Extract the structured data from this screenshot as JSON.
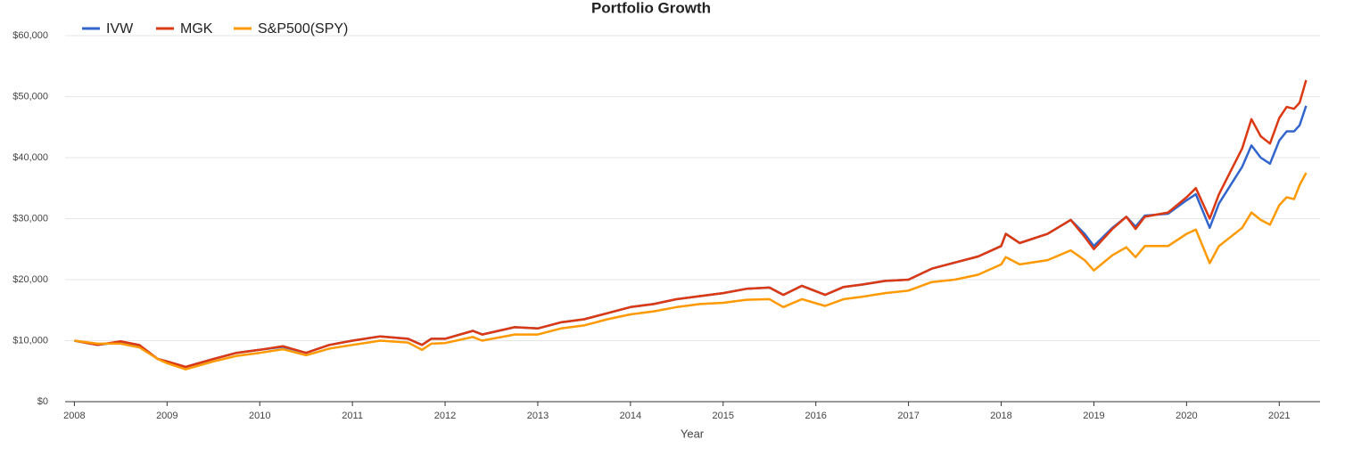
{
  "chart_data": {
    "type": "line",
    "title": "Portfolio Growth",
    "x_label": "Year",
    "x": [
      2008.0,
      2008.25,
      2008.5,
      2008.7,
      2008.9,
      2009.0,
      2009.2,
      2009.5,
      2009.75,
      2010.0,
      2010.25,
      2010.5,
      2010.75,
      2011.0,
      2011.3,
      2011.6,
      2011.75,
      2011.85,
      2012.0,
      2012.3,
      2012.4,
      2012.75,
      2013.0,
      2013.25,
      2013.5,
      2013.75,
      2014.0,
      2014.25,
      2014.5,
      2014.75,
      2015.0,
      2015.25,
      2015.5,
      2015.65,
      2015.85,
      2016.1,
      2016.3,
      2016.5,
      2016.75,
      2017.0,
      2017.25,
      2017.5,
      2017.75,
      2018.0,
      2018.05,
      2018.2,
      2018.5,
      2018.75,
      2018.9,
      2019.0,
      2019.2,
      2019.35,
      2019.45,
      2019.55,
      2019.8,
      2020.0,
      2020.1,
      2020.25,
      2020.35,
      2020.6,
      2020.7,
      2020.8,
      2020.9,
      2021.0,
      2021.08,
      2021.16,
      2021.22,
      2021.29
    ],
    "series": [
      {
        "name": "IVW",
        "color": "#3366cc",
        "values": [
          10000,
          9300,
          9800,
          9200,
          7000,
          6600,
          5700,
          7000,
          8000,
          8500,
          9000,
          8000,
          9300,
          10000,
          10700,
          10300,
          9300,
          10300,
          10300,
          11600,
          11000,
          12200,
          12000,
          13000,
          13500,
          14500,
          15500,
          16000,
          16800,
          17300,
          17800,
          18500,
          18700,
          17500,
          19000,
          17500,
          18800,
          19200,
          19800,
          20000,
          21800,
          22800,
          23800,
          25500,
          27500,
          26000,
          27500,
          29800,
          27500,
          25500,
          28500,
          30300,
          28700,
          30500,
          30800,
          33000,
          34000,
          28500,
          32500,
          38500,
          42000,
          40000,
          39000,
          42800,
          44300,
          44300,
          45300,
          48500
        ]
      },
      {
        "name": "MGK",
        "color": "#dc3912",
        "values": [
          10000,
          9300,
          9900,
          9300,
          7000,
          6600,
          5700,
          7000,
          8000,
          8500,
          9100,
          8000,
          9300,
          10000,
          10700,
          10300,
          9300,
          10300,
          10300,
          11600,
          11000,
          12200,
          12000,
          13000,
          13500,
          14500,
          15500,
          16000,
          16800,
          17300,
          17800,
          18500,
          18700,
          17500,
          19000,
          17500,
          18800,
          19200,
          19800,
          20000,
          21800,
          22800,
          23800,
          25500,
          27500,
          26000,
          27500,
          29800,
          27000,
          25000,
          28300,
          30300,
          28300,
          30300,
          31000,
          33500,
          35000,
          30000,
          34000,
          41500,
          46300,
          43500,
          42300,
          46500,
          48300,
          48000,
          49000,
          52700
        ]
      },
      {
        "name": "S&P500(SPY)",
        "color": "#ff9900",
        "values": [
          10000,
          9500,
          9500,
          8900,
          7000,
          6300,
          5300,
          6600,
          7500,
          8000,
          8600,
          7600,
          8700,
          9300,
          10000,
          9700,
          8500,
          9500,
          9600,
          10600,
          10000,
          11000,
          11000,
          12000,
          12500,
          13500,
          14300,
          14800,
          15500,
          16000,
          16200,
          16700,
          16800,
          15500,
          16800,
          15700,
          16800,
          17200,
          17800,
          18200,
          19600,
          20000,
          20800,
          22500,
          23700,
          22500,
          23200,
          24800,
          23200,
          21500,
          24000,
          25300,
          23700,
          25500,
          25500,
          27500,
          28200,
          22700,
          25500,
          28500,
          31000,
          29800,
          29000,
          32200,
          33500,
          33200,
          35500,
          37500
        ]
      }
    ],
    "xlim": [
      2007.9,
      2021.44
    ],
    "xticks": [
      2008,
      2009,
      2010,
      2011,
      2012,
      2013,
      2014,
      2015,
      2016,
      2017,
      2018,
      2019,
      2020,
      2021
    ],
    "ylim": [
      0,
      60000
    ],
    "yticks": [
      {
        "value": 0,
        "label": "$0"
      },
      {
        "value": 10000,
        "label": "$10,000"
      },
      {
        "value": 20000,
        "label": "$20,000"
      },
      {
        "value": 30000,
        "label": "$30,000"
      },
      {
        "value": 40000,
        "label": "$40,000"
      },
      {
        "value": 50000,
        "label": "$50,000"
      },
      {
        "value": 60000,
        "label": "$60,000"
      }
    ],
    "grid": true,
    "legend": "top-left"
  }
}
